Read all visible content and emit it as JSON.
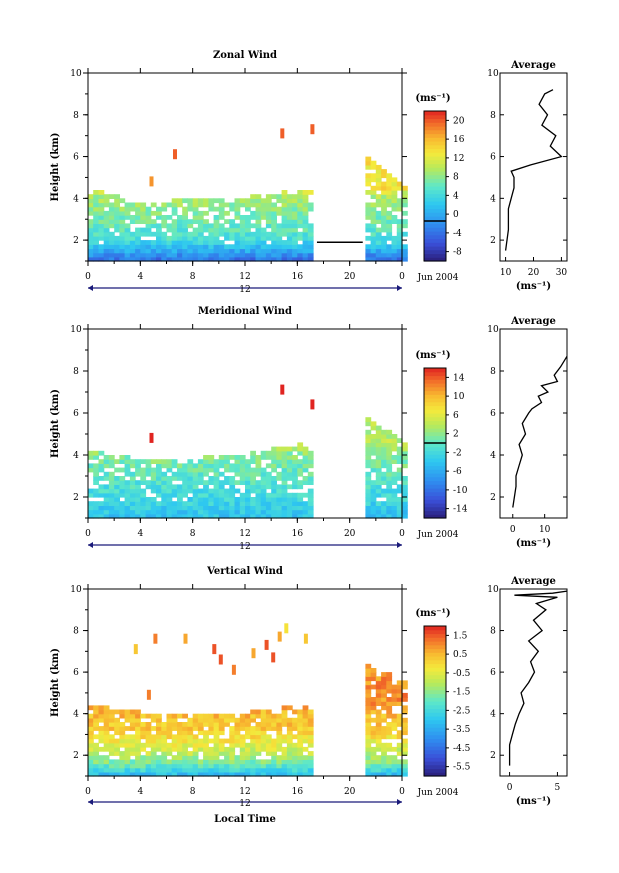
{
  "chart_data": [
    {
      "type": "heatmap",
      "title": "Zonal Wind",
      "xlabel": "",
      "ylabel": "Height (km)",
      "xlim": [
        0,
        24
      ],
      "ylim": [
        1,
        10
      ],
      "x_ticks": [
        "0",
        "4",
        "8",
        "12",
        "16",
        "20",
        "0"
      ],
      "y_ticks": [
        "2",
        "4",
        "6",
        "8",
        "10"
      ],
      "date_label": "12",
      "month_label": "Jun 2004",
      "colorbar": {
        "unit": "(ms⁻¹)",
        "range": [
          -8,
          22
        ],
        "tick_labels": [
          "20",
          "16",
          "12",
          "8",
          "4",
          "0",
          "-4",
          "-8"
        ],
        "zero_line": 0
      },
      "missing_segments": [
        [
          17.5,
          21.0
        ]
      ],
      "sparse_patches": [
        {
          "x": 6.5,
          "y": 6.0,
          "value": 20
        },
        {
          "x": 14.7,
          "y": 7.0,
          "value": 20
        },
        {
          "x": 17.0,
          "y": 7.2,
          "value": 20
        },
        {
          "x": 4.7,
          "y": 4.7,
          "value": 18
        }
      ],
      "filled_top": [
        [
          0,
          4.4
        ],
        [
          4,
          3.7
        ],
        [
          8,
          3.9
        ],
        [
          12,
          4.0
        ],
        [
          16,
          4.3
        ],
        [
          17.5,
          4.3
        ],
        [
          21,
          6.0
        ],
        [
          24,
          4.5
        ]
      ],
      "value_profile": [
        [
          1,
          -2
        ],
        [
          1.5,
          2
        ],
        [
          2,
          6
        ],
        [
          3,
          8
        ],
        [
          4,
          10
        ],
        [
          4.4,
          14
        ]
      ],
      "average_profile": {
        "title": "Average",
        "xlabel": "(ms⁻¹)",
        "xlim": [
          8,
          32
        ],
        "x_ticks": [
          "10",
          "20",
          "30"
        ],
        "y_ticks": [
          "2",
          "4",
          "6",
          "8",
          "10"
        ],
        "points": [
          [
            10,
            1.5
          ],
          [
            11,
            2.5
          ],
          [
            11,
            3.5
          ],
          [
            12,
            4.0
          ],
          [
            13,
            4.5
          ],
          [
            13,
            5.0
          ],
          [
            12,
            5.3
          ],
          [
            19,
            5.6
          ],
          [
            30,
            6.0
          ],
          [
            26,
            6.5
          ],
          [
            28,
            7.0
          ],
          [
            23,
            7.5
          ],
          [
            25,
            8.0
          ],
          [
            22,
            8.5
          ],
          [
            24,
            9.0
          ],
          [
            27,
            9.2
          ]
        ]
      }
    },
    {
      "type": "heatmap",
      "title": "Meridional Wind",
      "xlabel": "",
      "ylabel": "Height (km)",
      "xlim": [
        0,
        24
      ],
      "ylim": [
        1,
        10
      ],
      "x_ticks": [
        "0",
        "4",
        "8",
        "12",
        "16",
        "20",
        "0"
      ],
      "y_ticks": [
        "2",
        "4",
        "6",
        "8",
        "10"
      ],
      "date_label": "12",
      "month_label": "Jun 2004",
      "colorbar": {
        "unit": "(ms⁻¹)",
        "range": [
          -16,
          16
        ],
        "tick_labels": [
          "14",
          "10",
          "6",
          "2",
          "-2",
          "-6",
          "-10",
          "-14"
        ],
        "zero_line": 0
      },
      "missing_segments": [
        [
          17.5,
          21.0
        ]
      ],
      "sparse_patches": [
        {
          "x": 14.7,
          "y": 7.0,
          "value": 16
        },
        {
          "x": 17.0,
          "y": 6.3,
          "value": 16
        },
        {
          "x": 4.7,
          "y": 4.7,
          "value": 16
        }
      ],
      "filled_top": [
        [
          0,
          4.2
        ],
        [
          4,
          3.7
        ],
        [
          8,
          3.8
        ],
        [
          12,
          4.0
        ],
        [
          16,
          4.5
        ],
        [
          17.5,
          3.8
        ],
        [
          21,
          5.8
        ],
        [
          24,
          4.5
        ]
      ],
      "value_profile": [
        [
          1,
          -4
        ],
        [
          2,
          -2
        ],
        [
          3,
          0
        ],
        [
          4,
          2
        ],
        [
          4.4,
          4
        ]
      ],
      "average_profile": {
        "title": "Average",
        "xlabel": "(ms⁻¹)",
        "xlim": [
          -4,
          17
        ],
        "x_ticks": [
          "0",
          "10"
        ],
        "y_ticks": [
          "2",
          "4",
          "6",
          "8",
          "10"
        ],
        "points": [
          [
            0,
            1.5
          ],
          [
            1,
            2.5
          ],
          [
            1,
            3.0
          ],
          [
            2,
            3.5
          ],
          [
            3,
            4.0
          ],
          [
            2,
            4.5
          ],
          [
            4,
            5.0
          ],
          [
            3,
            5.5
          ],
          [
            5,
            6.0
          ],
          [
            6,
            6.2
          ],
          [
            9,
            6.5
          ],
          [
            8,
            6.8
          ],
          [
            11,
            7.0
          ],
          [
            9,
            7.3
          ],
          [
            14,
            7.5
          ],
          [
            13,
            7.8
          ],
          [
            15,
            8.2
          ],
          [
            17,
            8.7
          ]
        ]
      }
    },
    {
      "type": "heatmap",
      "title": "Vertical Wind",
      "xlabel": "Local Time",
      "ylabel": "Height (km)",
      "xlim": [
        0,
        24
      ],
      "ylim": [
        1,
        10
      ],
      "x_ticks": [
        "0",
        "4",
        "8",
        "12",
        "16",
        "20",
        "0"
      ],
      "y_ticks": [
        "2",
        "4",
        "6",
        "8",
        "10"
      ],
      "date_label": "12",
      "month_label": "Jun 2004",
      "colorbar": {
        "unit": "(ms⁻¹)",
        "range": [
          -7,
          2.5
        ],
        "tick_labels": [
          "1.5",
          "0.5",
          "-0.5",
          "-1.5",
          "-2.5",
          "-3.5",
          "-4.5",
          "-5.5"
        ],
        "zero_line": null
      },
      "missing_segments": [
        [
          17.5,
          21.0
        ]
      ],
      "sparse_patches": [
        {
          "x": 5.0,
          "y": 7.5,
          "value": 1.5
        },
        {
          "x": 7.3,
          "y": 7.5,
          "value": 1.0
        },
        {
          "x": 9.5,
          "y": 7.0,
          "value": 2.0
        },
        {
          "x": 10.0,
          "y": 6.5,
          "value": 2.0
        },
        {
          "x": 11.0,
          "y": 6.0,
          "value": 1.5
        },
        {
          "x": 12.5,
          "y": 6.8,
          "value": 1.0
        },
        {
          "x": 13.5,
          "y": 7.2,
          "value": 2.0
        },
        {
          "x": 14.0,
          "y": 6.6,
          "value": 2.0
        },
        {
          "x": 14.5,
          "y": 7.6,
          "value": 1.0
        },
        {
          "x": 15.0,
          "y": 8.0,
          "value": 0.0
        },
        {
          "x": 16.5,
          "y": 7.5,
          "value": 0.5
        },
        {
          "x": 4.5,
          "y": 4.8,
          "value": 1.5
        },
        {
          "x": 3.5,
          "y": 7.0,
          "value": 0.5
        }
      ],
      "filled_top": [
        [
          0,
          4.3
        ],
        [
          4,
          4.0
        ],
        [
          8,
          4.0
        ],
        [
          12,
          4.0
        ],
        [
          16,
          4.3
        ],
        [
          17.5,
          4.3
        ],
        [
          21,
          6.3
        ],
        [
          24,
          5.5
        ]
      ],
      "value_profile": [
        [
          1,
          -3.5
        ],
        [
          1.5,
          -2
        ],
        [
          2,
          -1
        ],
        [
          3,
          0.3
        ],
        [
          4,
          0.8
        ],
        [
          4.3,
          1.3
        ]
      ],
      "average_profile": {
        "title": "Average",
        "xlabel": "(ms⁻¹)",
        "xlim": [
          -1,
          6
        ],
        "x_ticks": [
          "0",
          "5"
        ],
        "y_ticks": [
          "2",
          "4",
          "6",
          "8",
          "10"
        ],
        "points": [
          [
            0,
            1.5
          ],
          [
            0,
            2.5
          ],
          [
            0.3,
            3.0
          ],
          [
            0.6,
            3.5
          ],
          [
            1.0,
            4.0
          ],
          [
            1.5,
            4.5
          ],
          [
            1.2,
            5.0
          ],
          [
            2.0,
            5.5
          ],
          [
            2.6,
            6.0
          ],
          [
            2.2,
            6.5
          ],
          [
            3.0,
            7.0
          ],
          [
            2.0,
            7.5
          ],
          [
            3.4,
            8.0
          ],
          [
            2.5,
            8.5
          ],
          [
            3.8,
            9.0
          ],
          [
            2.8,
            9.3
          ],
          [
            5.0,
            9.6
          ],
          [
            0.5,
            9.7
          ],
          [
            4.5,
            9.8
          ],
          [
            6.0,
            9.9
          ]
        ]
      }
    }
  ]
}
